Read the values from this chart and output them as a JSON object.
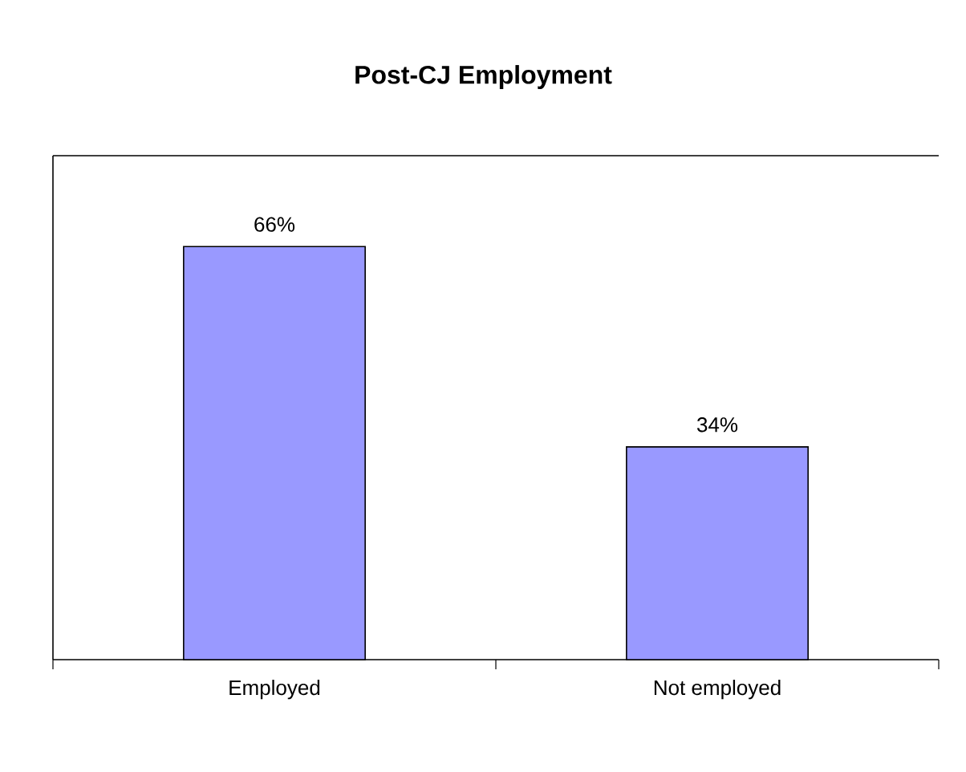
{
  "chart_data": {
    "type": "bar",
    "title": "Post-CJ Employment",
    "categories": [
      "Employed",
      "Not employed"
    ],
    "values": [
      66,
      34
    ],
    "value_labels": [
      "66%",
      "34%"
    ],
    "color": "#9999ff"
  }
}
